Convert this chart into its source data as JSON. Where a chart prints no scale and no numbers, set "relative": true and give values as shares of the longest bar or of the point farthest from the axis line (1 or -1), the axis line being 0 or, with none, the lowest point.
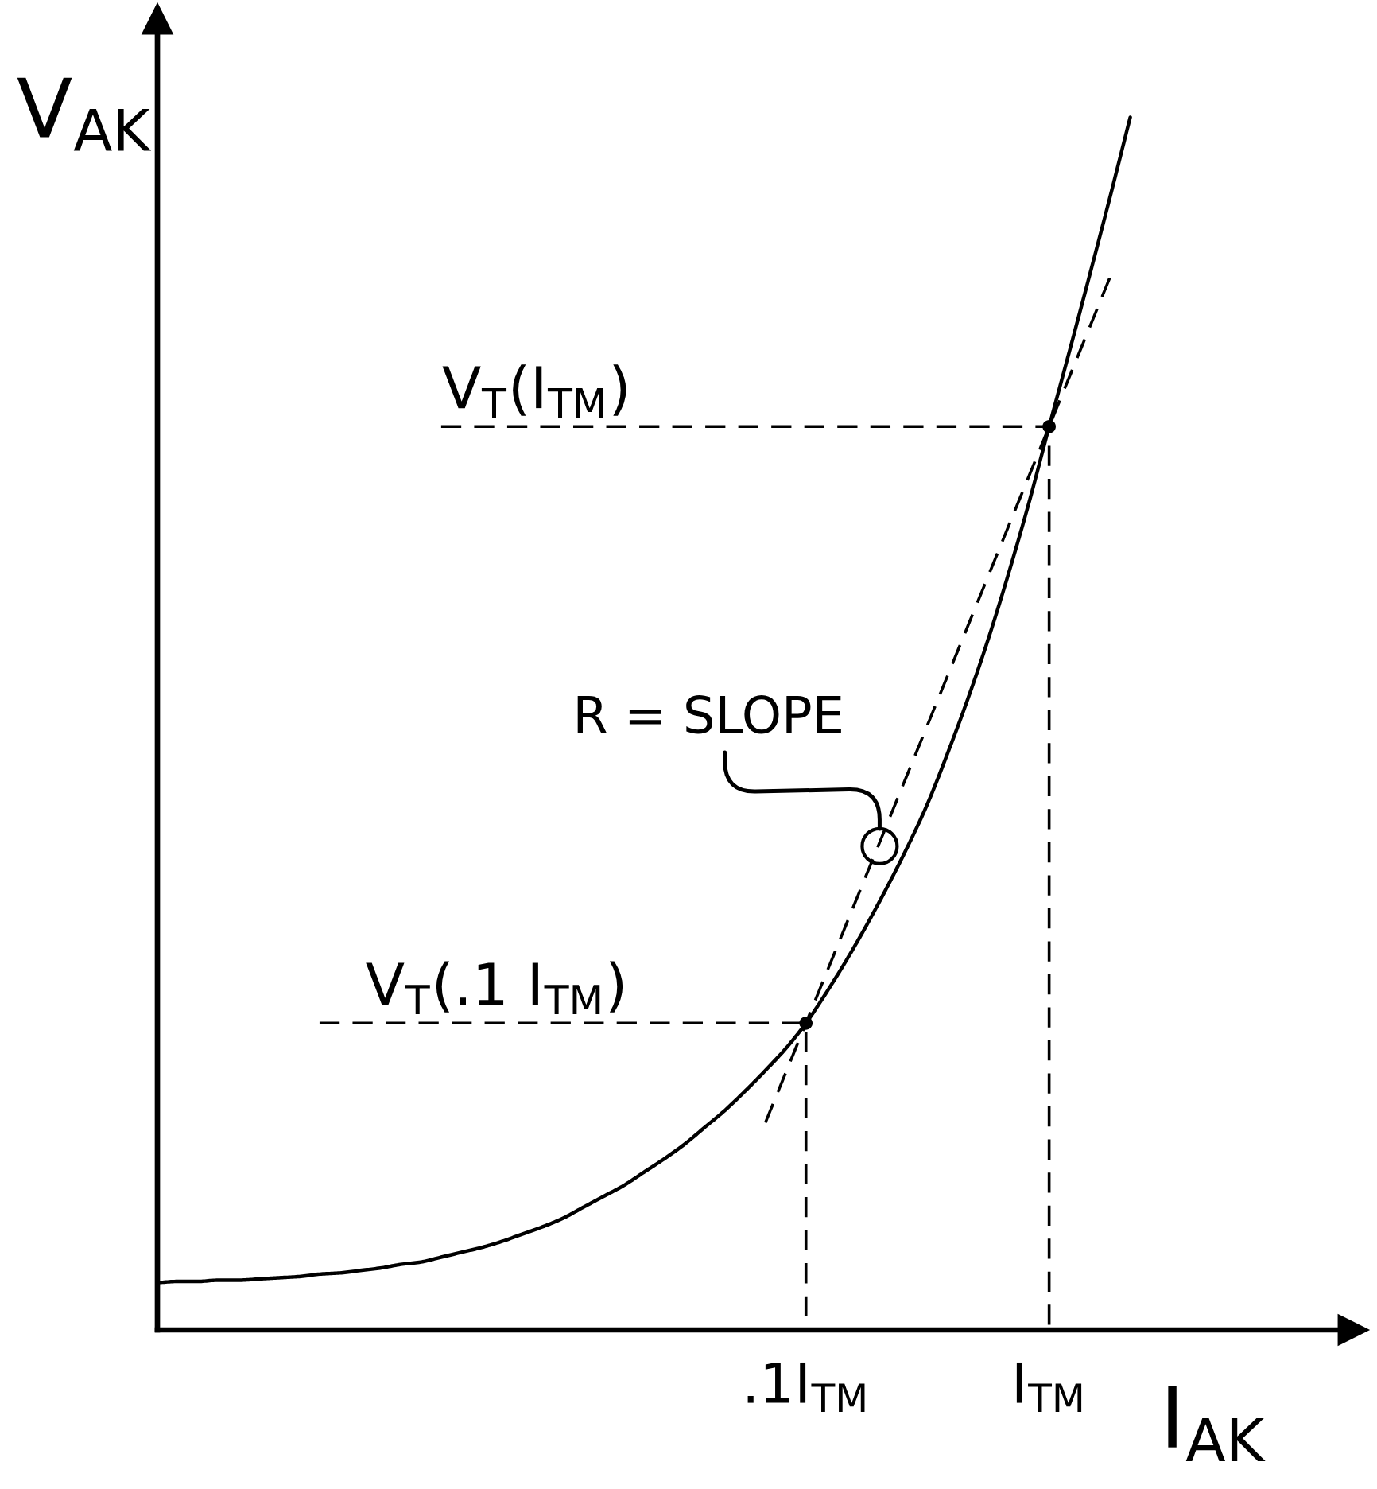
{
  "chart_data": {
    "type": "line",
    "relative": true,
    "xlabel": "I$_{AK}$",
    "ylabel": "V$_{AK}$",
    "categories": [
      null,
      null,
      null,
      null,
      null,
      null,
      null,
      null,
      null,
      null,
      null,
      null,
      null,
      null,
      null,
      null,
      null,
      null,
      null,
      null,
      null,
      null,
      null,
      null,
      null,
      null,
      null,
      null,
      null,
      null,
      null,
      null,
      ".1I$_{TM}$",
      null,
      null,
      null,
      null,
      null,
      null,
      null,
      null,
      null,
      null,
      null,
      "I$_{TM}$",
      null,
      null,
      null,
      null,
      null,
      null,
      null,
      null,
      null,
      null,
      null,
      null,
      null,
      null,
      null
    ],
    "tick_labels": "x",
    "series": [
      {
        "color": "#000000",
        "line_style": "solid",
        "values": [
          0.039,
          0.04,
          0.04,
          0.041,
          0.041,
          0.042,
          0.043,
          0.044,
          0.046,
          0.047,
          0.049,
          0.051,
          0.054,
          0.056,
          0.06,
          0.064,
          0.068,
          0.073,
          0.079,
          0.085,
          0.092,
          0.101,
          0.11,
          0.119,
          0.13,
          0.141,
          0.153,
          0.167,
          0.181,
          0.197,
          0.214,
          0.232,
          0.253,
          0.278,
          0.305,
          0.334,
          0.365,
          0.398,
          0.434,
          0.476,
          0.521,
          0.57,
          0.624,
          0.682,
          0.745,
          0.807,
          0.87,
          0.934,
          1.0,
          null,
          null,
          null,
          null,
          null,
          null,
          null,
          null,
          null,
          null,
          null
        ]
      },
      {
        "color": "#000000",
        "line_style": "dashed",
        "values": [
          null,
          null,
          null,
          null,
          null,
          null,
          null,
          null,
          null,
          null,
          null,
          null,
          null,
          null,
          null,
          null,
          null,
          null,
          null,
          null,
          null,
          null,
          null,
          null,
          null,
          null,
          null,
          null,
          null,
          null,
          0.171,
          0.212,
          0.253,
          0.294,
          0.335,
          0.376,
          0.417,
          0.458,
          0.499,
          0.54,
          0.581,
          0.622,
          0.663,
          0.704,
          0.745,
          0.786,
          0.827,
          0.868,
          null,
          null,
          null,
          null,
          null,
          null,
          null,
          null,
          null,
          null,
          null,
          null
        ]
      },
      {
        "type": "step",
        "color": "#000000",
        "line_style": "dashed",
        "values": [
          null,
          null,
          null,
          null,
          null,
          null,
          null,
          null,
          null,
          null,
          null,
          null,
          null,
          null,
          0.745,
          0.745,
          0.745,
          0.745,
          0.745,
          0.745,
          0.745,
          0.745,
          0.745,
          0.745,
          0.745,
          0.745,
          0.745,
          0.745,
          0.745,
          0.745,
          0.745,
          0.745,
          0.745,
          0.745,
          0.745,
          0.745,
          0.745,
          0.745,
          0.745,
          0.745,
          0.745,
          0.745,
          0.745,
          0.745,
          0,
          null,
          null,
          null,
          null,
          null,
          null,
          null,
          null,
          null,
          null,
          null,
          null,
          null,
          null,
          null
        ]
      },
      {
        "type": "step",
        "color": "#000000",
        "line_style": "dashed",
        "values": [
          null,
          null,
          null,
          null,
          null,
          null,
          null,
          null,
          0.253,
          0.253,
          0.253,
          0.253,
          0.253,
          0.253,
          0.253,
          0.253,
          0.253,
          0.253,
          0.253,
          0.253,
          0.253,
          0.253,
          0.253,
          0.253,
          0.253,
          0.253,
          0.253,
          0.253,
          0.253,
          0.253,
          0.253,
          0.253,
          0,
          null,
          null,
          null,
          null,
          null,
          null,
          null,
          null,
          null,
          null,
          null,
          null,
          null,
          null,
          null,
          null,
          null,
          null,
          null,
          null,
          null,
          null,
          null,
          null,
          null,
          null,
          null
        ]
      },
      {
        "type": "scatter",
        "color": "#000000",
        "marker": "circle",
        "values": [
          null,
          null,
          null,
          null,
          null,
          null,
          null,
          null,
          null,
          null,
          null,
          null,
          null,
          null,
          null,
          null,
          null,
          null,
          null,
          null,
          null,
          null,
          null,
          null,
          null,
          null,
          null,
          null,
          null,
          null,
          null,
          null,
          0.253,
          null,
          null,
          null,
          null,
          null,
          null,
          null,
          null,
          null,
          null,
          null,
          0.745,
          null,
          null,
          null,
          null,
          null,
          null,
          null,
          null,
          null,
          null,
          null,
          null,
          null,
          null,
          null
        ]
      }
    ],
    "annotations": [
      {
        "text": "V$_{T}$(I$_{TM}$)",
        "y": 0.745
      },
      "R = SLOPE",
      {
        "text": "V$_{T}$(.1 I$_{TM}$)",
        "y": 0.253
      }
    ]
  }
}
